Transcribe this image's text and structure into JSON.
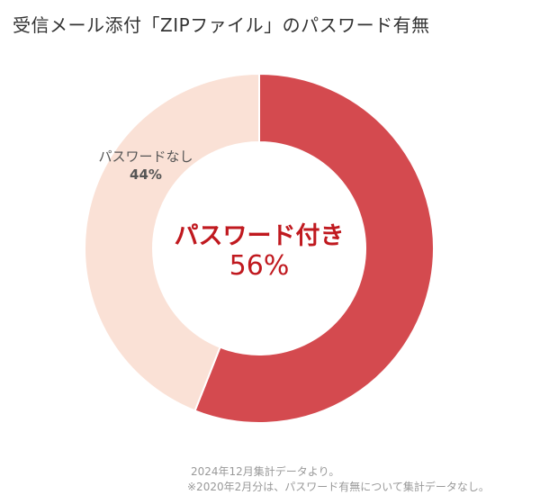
{
  "colors": {
    "with_password": "#d44a4f",
    "without_password": "#fae1d6",
    "emphasis_text": "#c0191f"
  },
  "chart_data": {
    "type": "pie",
    "style": "donut",
    "title": "受信メール添付「ZIPファイル」のパスワード有無",
    "categories": [
      "パスワード付き",
      "パスワードなし"
    ],
    "values": [
      56,
      44
    ],
    "unit": "%",
    "value_labels": [
      "56%",
      "44%"
    ],
    "notes": [
      "2024年12月集計データより。",
      "※2020年2月分は、パスワード有無について集計データなし。"
    ]
  }
}
